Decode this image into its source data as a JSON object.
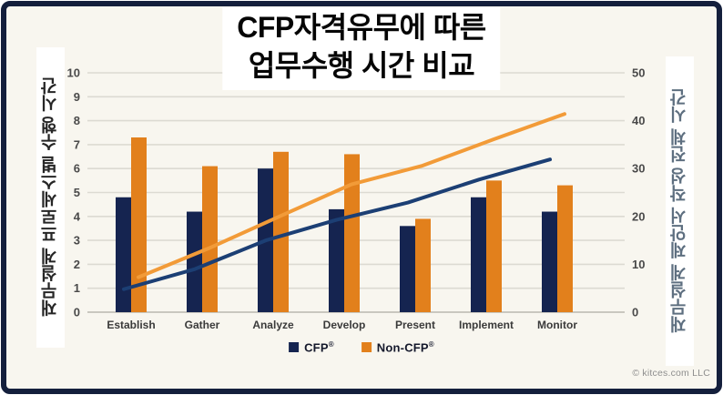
{
  "title": {
    "line1": "CFP자격유무에 따른",
    "line2": "업무수행 시간 비교"
  },
  "left_axis": {
    "label": "재무설계 프로세스별 수행 시간",
    "ticks": [
      0,
      1,
      2,
      3,
      4,
      5,
      6,
      7,
      8,
      9,
      10
    ]
  },
  "right_axis": {
    "label": "재무설계 제안서 작성 전체 시간",
    "ticks": [
      0,
      10,
      20,
      30,
      40,
      50
    ]
  },
  "legend": {
    "items": [
      {
        "label": "CFP",
        "reg": "®",
        "color": "#152450"
      },
      {
        "label": "Non-CFP",
        "reg": "®",
        "color": "#e2801c"
      }
    ]
  },
  "footer": {
    "copyright": "© kitces.com LLC"
  },
  "colors": {
    "frame_border": "#141f3c",
    "canvas_bg": "#f8f6ef",
    "gridline": "#dcdad2",
    "axis_line": "#c9c7bf",
    "tick_text": "#4a4a4a",
    "category_text": "#3a3a3a",
    "bar_cfp": "#152450",
    "bar_noncfp": "#e2801c",
    "line_cfp": "#1c3f74",
    "line_noncfp": "#f29b38"
  },
  "chart_data": {
    "type": "bar",
    "subtype": "clustered-bar-with-cumulative-lines",
    "title": "CFP자격유무에 따른 업무수행 시간 비교",
    "categories": [
      "Establish",
      "Gather",
      "Analyze",
      "Develop",
      "Present",
      "Implement",
      "Monitor"
    ],
    "left_ylabel": "재무설계 프로세스별 수행 시간",
    "right_ylabel": "재무설계 제안서 작성 전체 시간",
    "left_ylim": [
      0,
      10
    ],
    "right_ylim": [
      0,
      50
    ],
    "grid": "horizontal",
    "legend_position": "bottom",
    "series": [
      {
        "name": "CFP®",
        "type": "bar",
        "axis": "left",
        "color": "#152450",
        "values": [
          4.8,
          4.2,
          6.0,
          4.3,
          3.6,
          4.8,
          4.2
        ]
      },
      {
        "name": "Non-CFP®",
        "type": "bar",
        "axis": "left",
        "color": "#e2801c",
        "values": [
          7.3,
          6.1,
          6.7,
          6.6,
          3.9,
          5.5,
          5.3
        ]
      },
      {
        "name": "CFP® cumulative total",
        "type": "line",
        "axis": "right",
        "color": "#1c3f74",
        "values": [
          4.8,
          9.0,
          15.0,
          19.3,
          22.9,
          27.7,
          31.9
        ]
      },
      {
        "name": "Non-CFP® cumulative total",
        "type": "line",
        "axis": "right",
        "color": "#f29b38",
        "values": [
          7.3,
          13.4,
          20.1,
          26.7,
          30.6,
          36.1,
          41.4
        ]
      }
    ]
  }
}
